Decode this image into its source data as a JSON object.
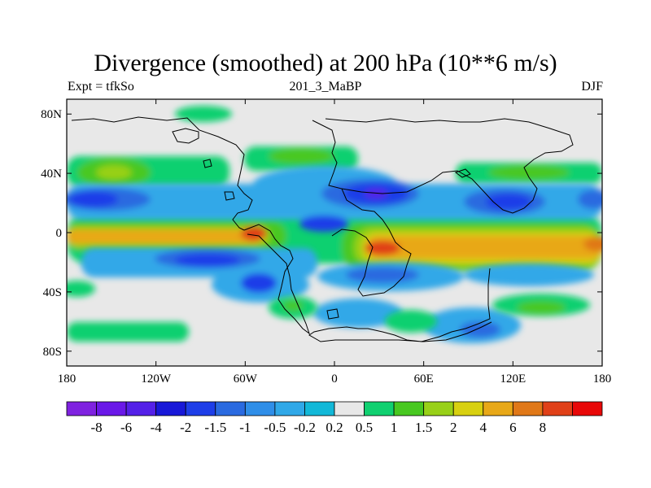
{
  "title": "Divergence (smoothed) at 200 hPa (10**6 m/s)",
  "left_label": "Expt = tfkSo",
  "center_label": "201_3_MaBP",
  "right_label": "DJF",
  "chart_data": {
    "type": "heatmap",
    "variable": "Divergence (smoothed) at 200 hPa",
    "units": "10**6 m/s",
    "season": "DJF",
    "xlim": [
      -180,
      180
    ],
    "ylim": [
      -90,
      90
    ],
    "x_ticks": [
      {
        "value": -180,
        "label": "180"
      },
      {
        "value": -120,
        "label": "120W"
      },
      {
        "value": -60,
        "label": "60W"
      },
      {
        "value": 0,
        "label": "0"
      },
      {
        "value": 60,
        "label": "60E"
      },
      {
        "value": 120,
        "label": "120E"
      },
      {
        "value": 180,
        "label": "180"
      }
    ],
    "y_ticks": [
      {
        "value": 80,
        "label": "80N"
      },
      {
        "value": 40,
        "label": "40N"
      },
      {
        "value": 0,
        "label": "0"
      },
      {
        "value": -40,
        "label": "40S"
      },
      {
        "value": -80,
        "label": "80S"
      }
    ],
    "contour_levels": [
      "-8",
      "-6",
      "-4",
      "-2",
      "-1.5",
      "-1",
      "-0.5",
      "-0.2",
      "0.2",
      "0.5",
      "1",
      "1.5",
      "2",
      "4",
      "6",
      "8"
    ],
    "colorbar_colors": [
      "#7f22e0",
      "#6a18e8",
      "#5420e8",
      "#1818d8",
      "#1e3ee8",
      "#2a6ae0",
      "#2f8ee8",
      "#30a8e8",
      "#12b8d8",
      "#e8e8e8",
      "#10d070",
      "#48c820",
      "#98d018",
      "#d8d010",
      "#e8a818",
      "#e07818",
      "#e04018",
      "#e80808"
    ],
    "fields": {
      "pos1": "#10d070",
      "pos2": "#48c820",
      "pos3": "#98d018",
      "pos4": "#d8d010",
      "pos5": "#e8a818",
      "pos6": "#e07818",
      "pos7": "#e04018",
      "neg1": "#30a8e8",
      "neg2": "#2a6ae0",
      "neg3": "#1e3ee8",
      "neg4": "#1818d8",
      "neg5": "#5420e8"
    },
    "features": [
      {
        "name": "tropical-divergence-band",
        "sign": "positive",
        "lon_range": [
          -180,
          180
        ],
        "lat_range": [
          -15,
          8
        ],
        "max_level": "6"
      },
      {
        "name": "subtropical-convergence-band-north",
        "sign": "negative",
        "lon_range": [
          -180,
          180
        ],
        "lat_range": [
          15,
          40
        ],
        "min_level": "-4"
      },
      {
        "name": "midlatitude-divergence-band-north",
        "sign": "positive",
        "lon_range": [
          -180,
          180
        ],
        "lat_range": [
          35,
          55
        ],
        "max_level": "2"
      },
      {
        "name": "subtropical-convergence-band-south",
        "sign": "negative",
        "lon_range": [
          -180,
          180
        ],
        "lat_range": [
          -40,
          -15
        ],
        "min_level": "-4"
      },
      {
        "name": "midlatitude-divergence-band-south",
        "sign": "positive",
        "lon_range": [
          -180,
          180
        ],
        "lat_range": [
          -60,
          -40
        ],
        "max_level": "1.5"
      }
    ]
  }
}
